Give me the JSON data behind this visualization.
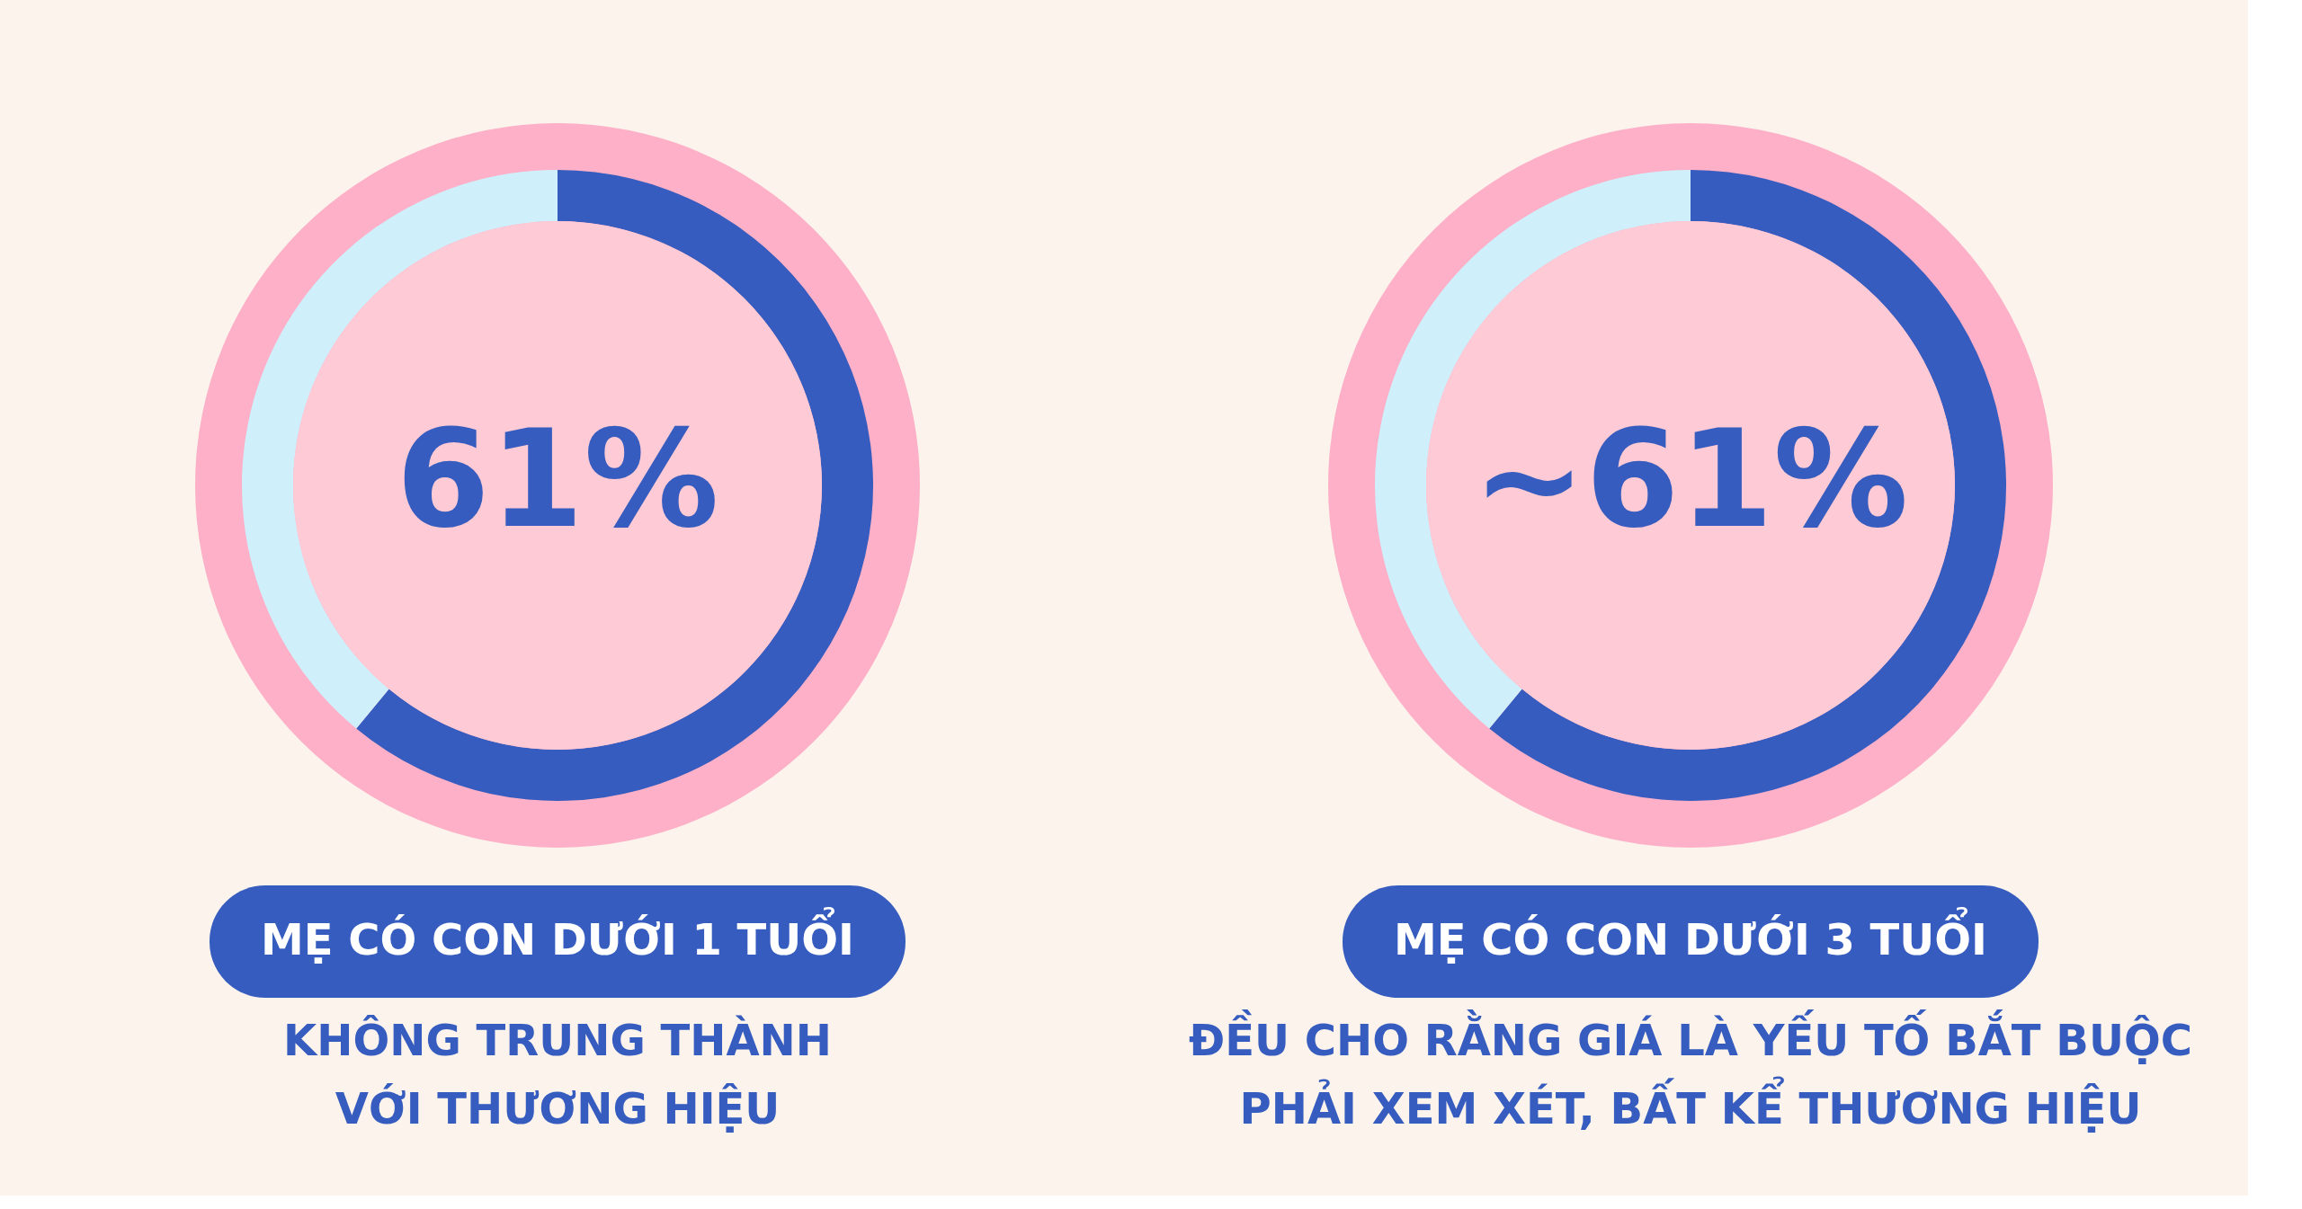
{
  "chart_data": [
    {
      "type": "donut",
      "title": "MẸ CÓ CON DƯỚI 1 TUỔI",
      "subtitle": [
        "KHÔNG TRUNG THÀNH",
        "VỚI THƯƠNG HIỆU"
      ],
      "categories": [
        null,
        null
      ],
      "values": [
        61,
        39
      ],
      "colors": [
        "#355cbe",
        "#cff0fb"
      ],
      "value_labels": [
        "61%",
        null
      ]
    },
    {
      "type": "donut",
      "title": "MẸ CÓ CON DƯỚI 3 TUỔI",
      "subtitle": [
        "ĐỀU CHO RẰNG GIÁ LÀ YẾU TỐ BẮT BUỘC",
        "PHẢI XEM XÉT, BẤT KỂ THƯƠNG HIỆU"
      ],
      "categories": [
        null,
        null
      ],
      "values": [
        61,
        39
      ],
      "colors": [
        "#355cbe",
        "#cff0fb"
      ],
      "value_labels": [
        "~61%",
        null
      ]
    }
  ]
}
